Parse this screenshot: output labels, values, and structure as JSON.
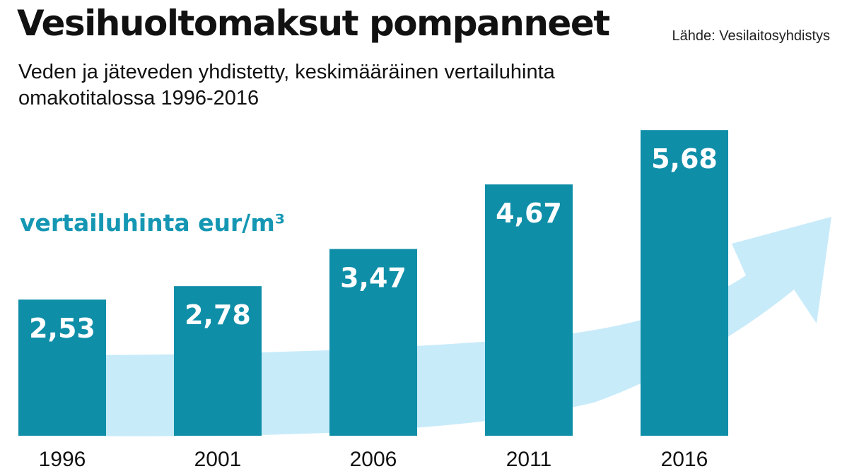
{
  "header": {
    "title": "Vesihuoltomaksut pompanneet",
    "subtitle": "Veden ja jäteveden yhdistetty, keskimääräinen vertailuhinta omakotitalossa 1996-2016",
    "source": "Lähde: Vesilaitosyhdistys"
  },
  "colors": {
    "bar": "#0f8ea8",
    "arrow": "#c8ebfa",
    "value_label": "#ffffff",
    "unit_label": "#1597b3",
    "text": "#111111"
  },
  "chart_data": {
    "type": "bar",
    "title": "Vesihuoltomaksut pompanneet",
    "subtitle": "Veden ja jäteveden yhdistetty, keskimääräinen vertailuhinta omakotitalossa 1996-2016",
    "categories": [
      "1996",
      "2001",
      "2006",
      "2011",
      "2016"
    ],
    "values": [
      2.53,
      2.78,
      3.47,
      4.67,
      5.68
    ],
    "value_labels": [
      "2,53",
      "2,78",
      "3,47",
      "4,67",
      "5,68"
    ],
    "unit_label": "vertailuhinta eur/m³",
    "xlabel": "",
    "ylabel": "",
    "grid": false,
    "legend": "none",
    "decoration": "upward trend arrow behind bars"
  }
}
